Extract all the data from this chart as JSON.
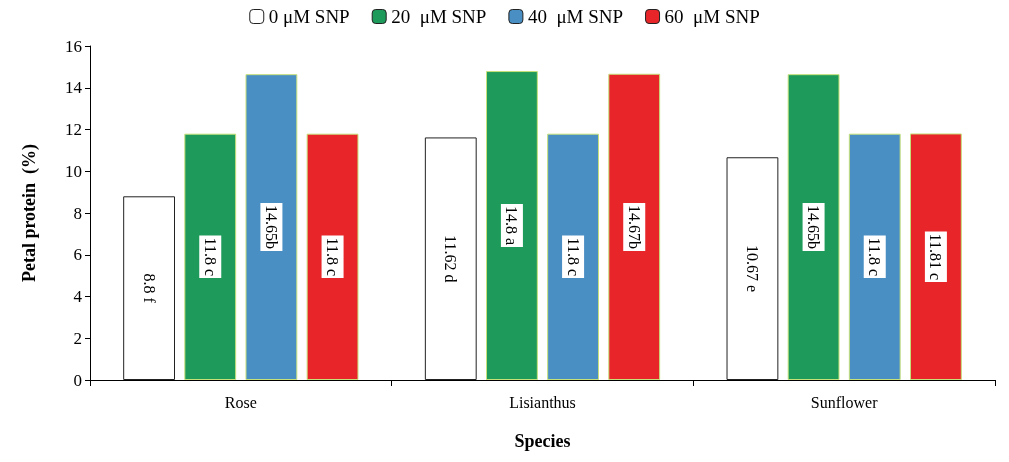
{
  "chart_data": {
    "type": "bar",
    "xlabel": "Species",
    "ylabel": "Petal protein  (%)",
    "categories": [
      "Rose",
      "Lisianthus",
      "Sunflower"
    ],
    "series": [
      {
        "name": "0 μM SNP",
        "color": "#ffffff",
        "values": [
          8.8,
          11.62,
          10.67
        ],
        "value_labels": [
          "8.8 f",
          "11.62 d",
          "10.67 e"
        ]
      },
      {
        "name": "20  μM SNP",
        "color": "#1e9b5a",
        "values": [
          11.8,
          14.8,
          14.65
        ],
        "value_labels": [
          "11.8 c",
          "14.8 a",
          "14.65b"
        ]
      },
      {
        "name": "40  μM SNP",
        "color": "#4a8fc4",
        "values": [
          14.65,
          11.8,
          11.8
        ],
        "value_labels": [
          "14.65b",
          "11.8 c",
          "11.8 c"
        ]
      },
      {
        "name": "60  μM SNP",
        "color": "#e8262a",
        "values": [
          11.8,
          14.67,
          11.81
        ],
        "value_labels": [
          "11.8 c",
          "14.67b",
          "11.81 c"
        ]
      }
    ],
    "ylim": [
      0,
      16
    ],
    "yticks": [
      0,
      2,
      4,
      6,
      8,
      10,
      12,
      14,
      16
    ],
    "grid": false,
    "legend": "top"
  }
}
